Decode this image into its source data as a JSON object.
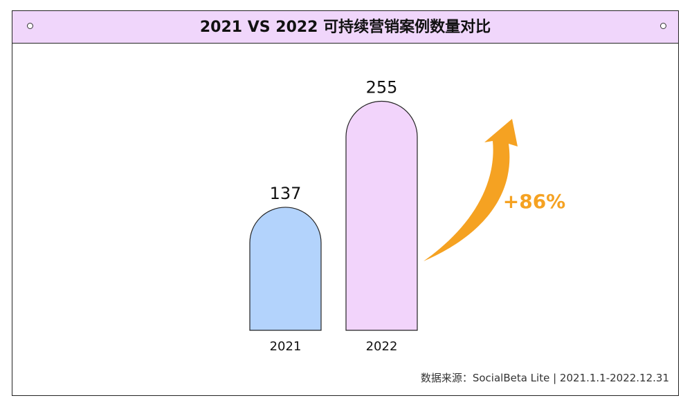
{
  "chart_data": {
    "type": "bar",
    "title": "2021 VS 2022 可持续营销案例数量对比",
    "categories": [
      "2021",
      "2022"
    ],
    "values": [
      137,
      255
    ],
    "ylim": [
      0,
      280
    ],
    "bar_colors": [
      "#b3d3fc",
      "#f2d4fb"
    ],
    "growth_label": "+86%",
    "growth_color": "#f5a222",
    "grid": false
  },
  "source": {
    "label": "数据来源：",
    "text": "SocialBeta Lite | 2021.1.1-2022.12.31"
  },
  "colors": {
    "header_bg": "#f0d6fb",
    "border": "#222222"
  }
}
